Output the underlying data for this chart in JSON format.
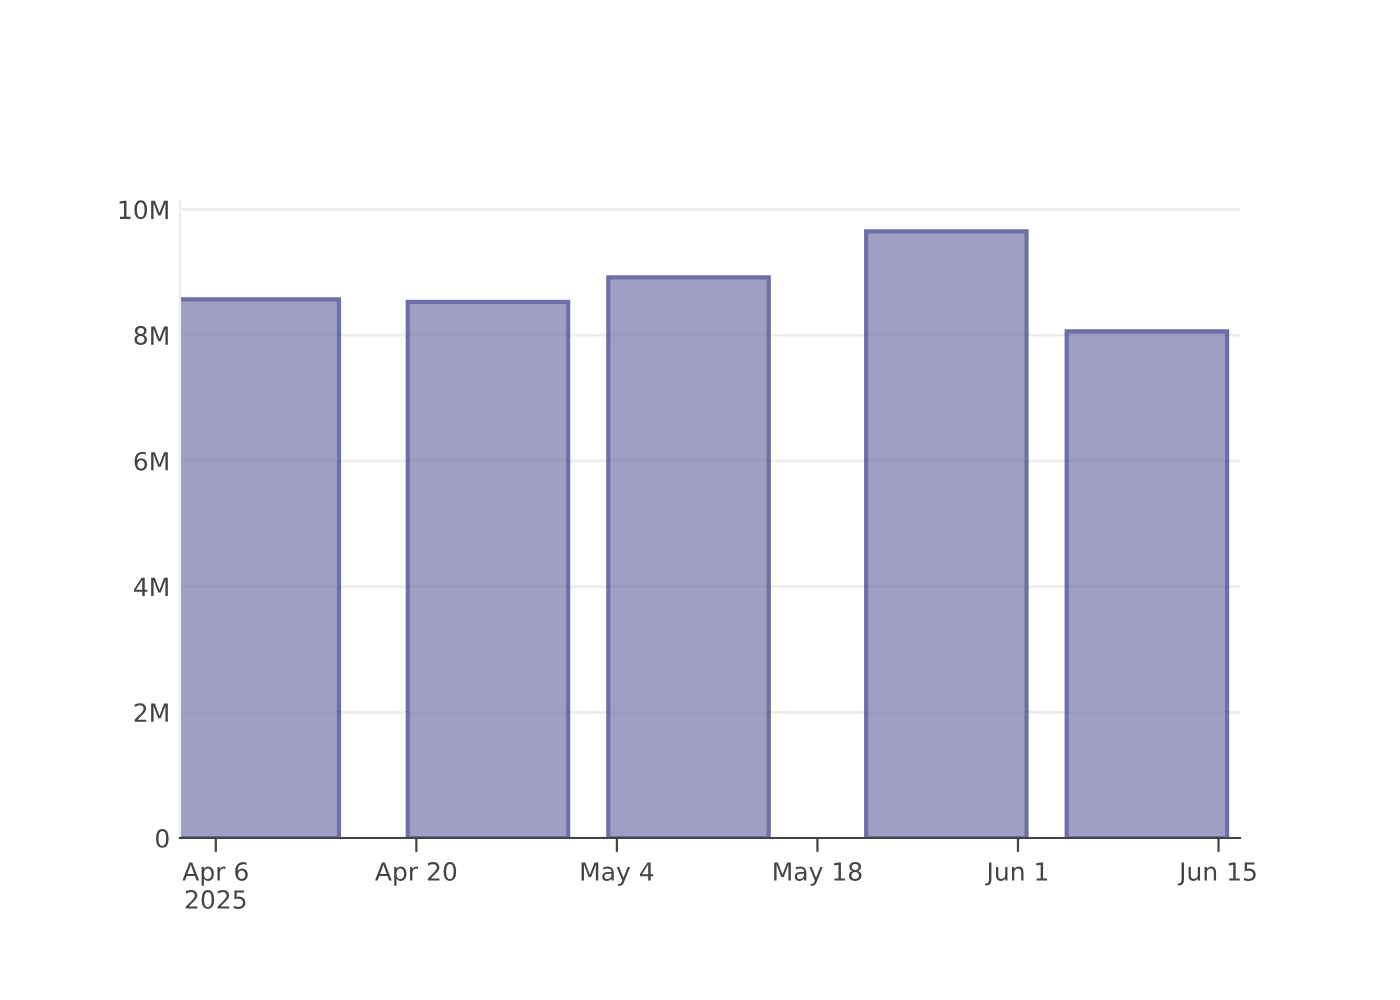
{
  "chart_data": {
    "type": "bar",
    "x": [
      "2025-04-09",
      "2025-04-25",
      "2025-05-09",
      "2025-05-27",
      "2025-06-10"
    ],
    "series": [
      {
        "color": "#7f7fb0",
        "values": [
          8570000,
          8530000,
          8920000,
          9650000,
          8060000
        ]
      }
    ],
    "xlim": [
      "2025-04-03T12:00",
      "2025-06-16T12:00"
    ],
    "xticks": [
      {
        "value": "2025-04-06",
        "label": "Apr 6\n2025"
      },
      {
        "value": "2025-04-20",
        "label": "Apr 20"
      },
      {
        "value": "2025-05-04",
        "label": "May 4"
      },
      {
        "value": "2025-05-18",
        "label": "May 18"
      },
      {
        "value": "2025-06-01",
        "label": "Jun 1"
      },
      {
        "value": "2025-06-15",
        "label": "Jun 15"
      }
    ],
    "ylim": [
      0,
      10150000
    ],
    "yticks": [
      {
        "value": 0,
        "label": "0"
      },
      {
        "value": 2000000,
        "label": "2M"
      },
      {
        "value": 4000000,
        "label": "4M"
      },
      {
        "value": 6000000,
        "label": "6M"
      },
      {
        "value": 8000000,
        "label": "8M"
      },
      {
        "value": 10000000,
        "label": "10M"
      }
    ],
    "grid": "y"
  }
}
